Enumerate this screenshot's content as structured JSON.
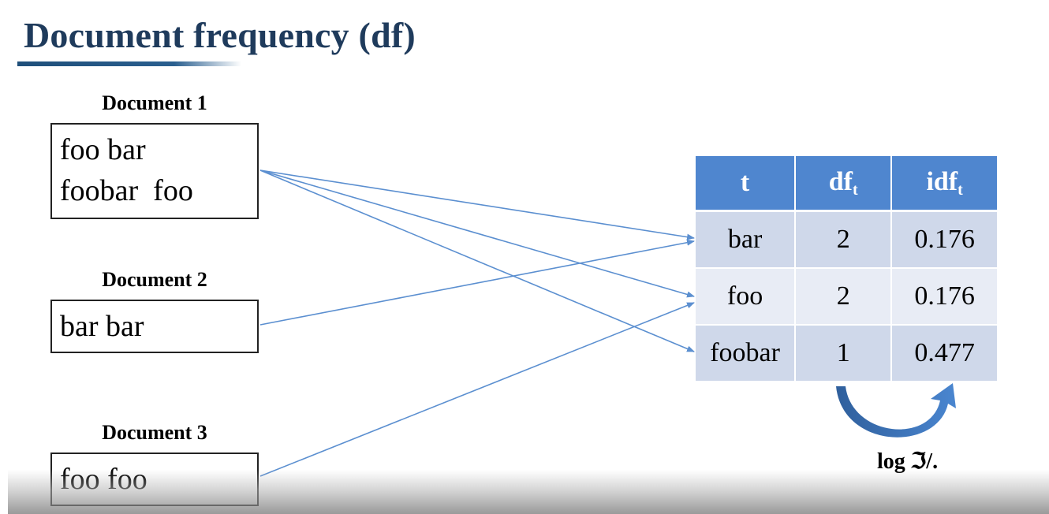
{
  "slide": {
    "title": "Document frequency (df)"
  },
  "documents": [
    {
      "label": "Document 1",
      "lines": [
        "foo bar",
        "foobar  foo"
      ]
    },
    {
      "label": "Document 2",
      "lines": [
        "bar bar"
      ]
    },
    {
      "label": "Document 3",
      "lines": [
        "foo foo"
      ]
    }
  ],
  "table": {
    "headers": {
      "t": "t",
      "df_base": "df",
      "df_sub": "t",
      "idf_base": "idf",
      "idf_sub": "t"
    },
    "rows": [
      {
        "term": "bar",
        "df": "2",
        "idf": "0.176"
      },
      {
        "term": "foo",
        "df": "2",
        "idf": "0.176"
      },
      {
        "term": "foobar",
        "df": "1",
        "idf": "0.477"
      }
    ]
  },
  "formula": {
    "text": "log ℑ/."
  },
  "colors": {
    "title": "#1f3b5c",
    "header_fill": "#4f86cf",
    "row_dark": "#cfd8ea",
    "row_light": "#e8ecf5",
    "arrow": "#5b8fd0"
  }
}
